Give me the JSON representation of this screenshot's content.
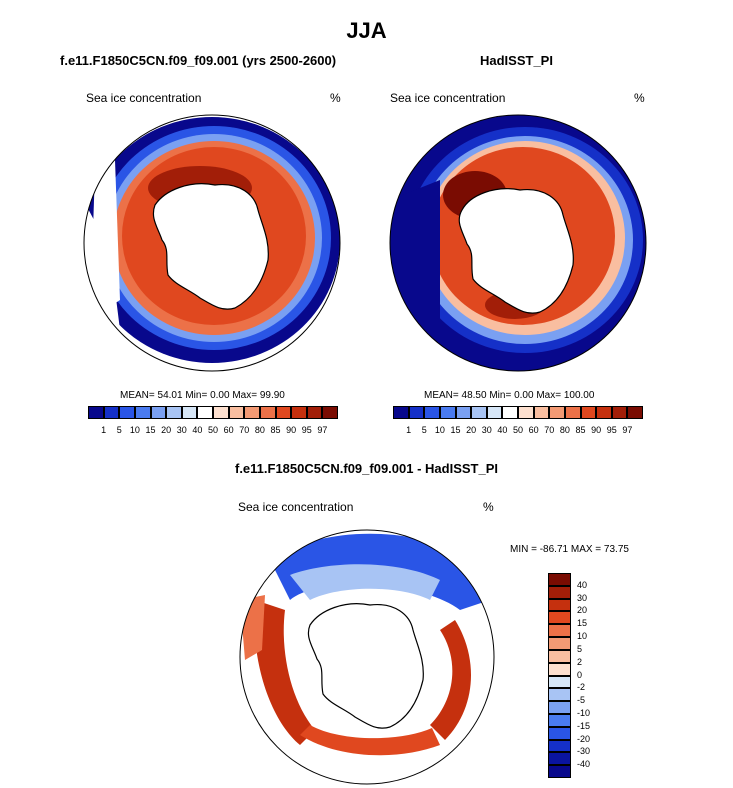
{
  "figure": {
    "title": "JJA"
  },
  "panels": [
    {
      "title": "f.e11.F1850C5CN.f09_f09.001 (yrs 2500-2600)",
      "variable": "Sea ice concentration",
      "units": "%",
      "stats": {
        "mean_label": "MEAN=",
        "mean": "54.01",
        "min_label": "Min=",
        "min": "0.00",
        "max_label": "Max=",
        "max": "99.90"
      }
    },
    {
      "title": "HadISST_PI",
      "variable": "Sea ice concentration",
      "units": "%",
      "stats": {
        "mean_label": "MEAN=",
        "mean": "48.50",
        "min_label": "Min=",
        "min": "0.00",
        "max_label": "Max=",
        "max": "100.00"
      }
    },
    {
      "title": "f.e11.F1850C5CN.f09_f09.001 - HadISST_PI",
      "variable": "Sea ice concentration",
      "units": "%",
      "minmax": "MIN = -86.71 MAX =  73.75"
    }
  ],
  "colorbar_abs": {
    "levels": [
      "1",
      "5",
      "10",
      "15",
      "20",
      "30",
      "40",
      "50",
      "60",
      "70",
      "80",
      "85",
      "90",
      "95",
      "97"
    ],
    "colors": [
      "#08088c",
      "#1530c8",
      "#2a55e6",
      "#4a7bf0",
      "#7aa0f2",
      "#a8c4f4",
      "#d6e6f7",
      "#ffffff",
      "#fde0cf",
      "#f9bea0",
      "#f39a74",
      "#ec7148",
      "#e0481f",
      "#c5300e",
      "#a21e08",
      "#7a0c02"
    ]
  },
  "colorbar_diff": {
    "levels": [
      "40",
      "30",
      "20",
      "15",
      "10",
      "5",
      "2",
      "0",
      "-2",
      "-5",
      "-10",
      "-15",
      "-20",
      "-30",
      "-40"
    ],
    "colors": [
      "#7a0c02",
      "#a21e08",
      "#c5300e",
      "#e0481f",
      "#ec7148",
      "#f39a74",
      "#f9bea0",
      "#fde0cf",
      "#d6e6f7",
      "#a8c4f4",
      "#7aa0f2",
      "#4a7bf0",
      "#2a55e6",
      "#1530c8",
      "#0a14a0",
      "#08088c"
    ]
  },
  "map_colors": {
    "ocean_open": "#08088c",
    "ice_high": "#c5300e",
    "ice_max": "#7a0c02",
    "land": "#ffffff",
    "diff_pos": "#d63a10",
    "diff_neg": "#2a55e6"
  }
}
